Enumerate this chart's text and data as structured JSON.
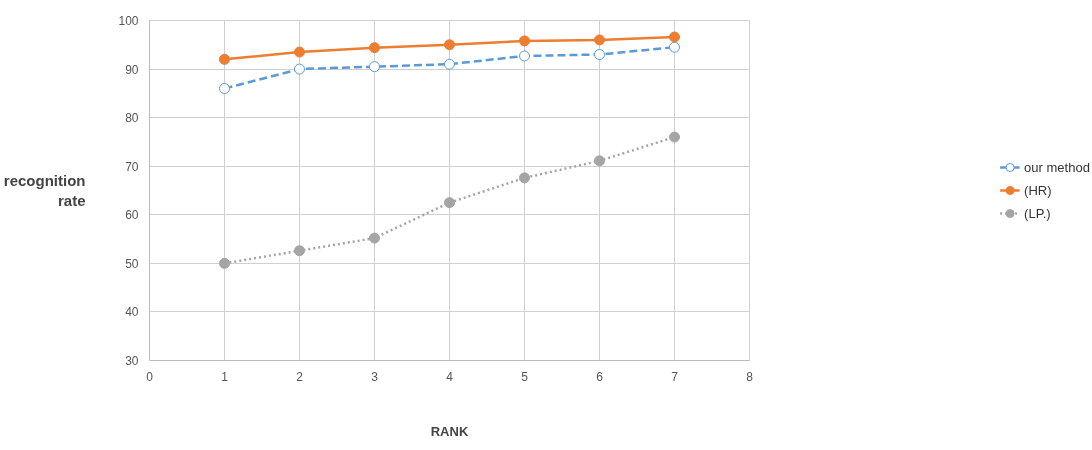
{
  "chart_data": {
    "type": "line",
    "xlabel": "RANK",
    "ylabel": "recognition rate",
    "x": [
      1,
      2,
      3,
      4,
      5,
      6,
      7
    ],
    "series": [
      {
        "name": "our method",
        "color": "#5b9bd5",
        "values": [
          86,
          90,
          90.5,
          91,
          92.7,
          93,
          94.5
        ],
        "line_style": "dashed",
        "marker": "circle"
      },
      {
        "name": "(HR)",
        "color": "#ed7d31",
        "values": [
          92,
          93.5,
          94.4,
          95,
          95.8,
          96,
          96.6
        ],
        "line_style": "solid",
        "marker": "circle"
      },
      {
        "name": "(LP.)",
        "color": "#a5a5a5",
        "values": [
          50,
          52.6,
          55.2,
          62.5,
          67.6,
          71.1,
          76
        ],
        "line_style": "dotted",
        "marker": "circle"
      }
    ],
    "xlim": [
      0,
      8
    ],
    "xticks": [
      0,
      1,
      2,
      3,
      4,
      5,
      6,
      7,
      8
    ],
    "ylim": [
      30,
      100
    ],
    "yticks": [
      30,
      40,
      50,
      60,
      70,
      80,
      90,
      100
    ],
    "grid": true,
    "legend": "right"
  }
}
